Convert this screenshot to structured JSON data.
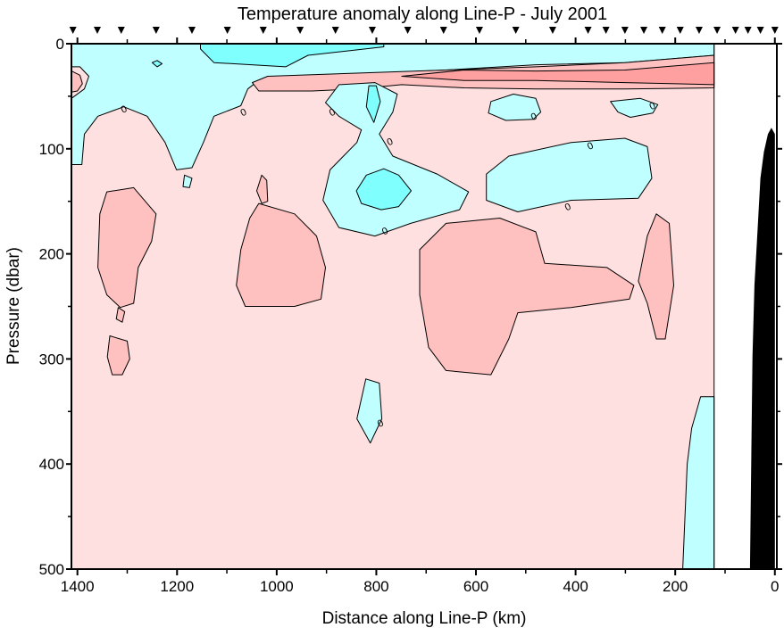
{
  "chart_data": {
    "type": "contour",
    "title": "Temperature anomaly along Line-P - July 2001",
    "xlabel": "Distance along Line-P (km)",
    "ylabel": "Pressure (dbar)",
    "xlim": [
      1412,
      -4
    ],
    "ylim": [
      0,
      500
    ],
    "x_reversed": true,
    "y_reversed": true,
    "x_ticks": [
      1400,
      1200,
      1000,
      800,
      600,
      400,
      200,
      0
    ],
    "x_tick_labels": [
      "1400",
      "1200",
      "1000",
      "800",
      "600",
      "400",
      "200",
      "0"
    ],
    "x_minor_ticks": [
      1300,
      1100,
      900,
      700,
      500,
      300,
      100
    ],
    "y_ticks": [
      0,
      100,
      200,
      300,
      400,
      500
    ],
    "y_tick_labels": [
      "0",
      "100",
      "200",
      "300",
      "400",
      "500"
    ],
    "y_minor_ticks": [
      50,
      150,
      250,
      350,
      450
    ],
    "grid": false,
    "data_extent_km": [
      1412,
      122
    ],
    "colors": {
      "background_positive": "#FFE0E0",
      "positive_1": "#FFC0C0",
      "positive_2": "#FFA0A0",
      "negative_1": "#C0FFFF",
      "negative_2": "#80FFFF",
      "bathymetry": "#000000",
      "no_data": "#FFFFFF"
    },
    "stations_km": [
      1409,
      1360,
      1312,
      1242,
      1170,
      1099,
      1027,
      953,
      882,
      808,
      737,
      665,
      593,
      520,
      446,
      375,
      339,
      301,
      263,
      226,
      190,
      152,
      116,
      79,
      54,
      29,
      0
    ],
    "contour_label": "0",
    "zero_label_positions": [
      [
        1307,
        62
      ],
      [
        1067,
        65
      ],
      [
        889,
        65
      ],
      [
        773,
        93
      ],
      [
        783,
        178
      ],
      [
        484,
        69
      ],
      [
        371,
        97
      ],
      [
        416,
        155
      ],
      [
        246,
        59
      ],
      [
        792,
        361
      ]
    ],
    "regions": [
      {
        "level": "negative_1",
        "points": [
          [
            1412,
            0
          ],
          [
            122,
            0
          ],
          [
            122,
            11
          ],
          [
            301,
            18
          ],
          [
            480,
            20
          ],
          [
            660,
            25
          ],
          [
            803,
            28
          ],
          [
            929,
            33
          ],
          [
            1036,
            35
          ],
          [
            1058,
            43
          ],
          [
            1072,
            59
          ],
          [
            1126,
            69
          ],
          [
            1147,
            94
          ],
          [
            1170,
            118
          ],
          [
            1201,
            120
          ],
          [
            1224,
            94
          ],
          [
            1260,
            69
          ],
          [
            1307,
            60
          ],
          [
            1359,
            69
          ],
          [
            1386,
            86
          ],
          [
            1391,
            115
          ],
          [
            1412,
            115
          ],
          [
            1412,
            52
          ],
          [
            1386,
            43
          ],
          [
            1377,
            31
          ],
          [
            1395,
            22
          ],
          [
            1412,
            22
          ]
        ]
      },
      {
        "level": "negative_2",
        "points": [
          [
            1153,
            0
          ],
          [
            785,
            0
          ],
          [
            785,
            3
          ],
          [
            937,
            11
          ],
          [
            982,
            22
          ],
          [
            1126,
            18
          ],
          [
            1153,
            5
          ]
        ]
      },
      {
        "level": "negative_2",
        "points": [
          [
            1250,
            18
          ],
          [
            1240,
            16
          ],
          [
            1230,
            19
          ],
          [
            1240,
            22
          ]
        ]
      },
      {
        "level": "positive_1",
        "points": [
          [
            1049,
            37
          ],
          [
            1018,
            31
          ],
          [
            839,
            28
          ],
          [
            660,
            25
          ],
          [
            480,
            22
          ],
          [
            301,
            18
          ],
          [
            122,
            11
          ],
          [
            122,
            42
          ],
          [
            301,
            43
          ],
          [
            480,
            43
          ],
          [
            624,
            42
          ],
          [
            749,
            39
          ],
          [
            839,
            43
          ],
          [
            929,
            45
          ],
          [
            1036,
            45
          ]
        ]
      },
      {
        "level": "positive_2",
        "points": [
          [
            749,
            31
          ],
          [
            624,
            25
          ],
          [
            480,
            26
          ],
          [
            301,
            25
          ],
          [
            122,
            18
          ],
          [
            122,
            39
          ],
          [
            301,
            37
          ],
          [
            480,
            35
          ],
          [
            624,
            35
          ]
        ]
      },
      {
        "level": "positive_1",
        "points": [
          [
            1412,
            26
          ],
          [
            1395,
            30
          ],
          [
            1390,
            38
          ],
          [
            1400,
            45
          ],
          [
            1412,
            46
          ]
        ]
      },
      {
        "level": "negative_1",
        "points": [
          [
            902,
            56
          ],
          [
            875,
            39
          ],
          [
            803,
            37
          ],
          [
            758,
            48
          ],
          [
            767,
            65
          ],
          [
            794,
            86
          ],
          [
            767,
            107
          ],
          [
            678,
            124
          ],
          [
            615,
            141
          ],
          [
            633,
            158
          ],
          [
            731,
            171
          ],
          [
            803,
            183
          ],
          [
            875,
            175
          ],
          [
            907,
            149
          ],
          [
            893,
            120
          ],
          [
            839,
            94
          ],
          [
            830,
            82
          ],
          [
            875,
            69
          ]
        ]
      },
      {
        "level": "negative_2",
        "points": [
          [
            840,
            140
          ],
          [
            820,
            125
          ],
          [
            785,
            119
          ],
          [
            755,
            125
          ],
          [
            730,
            140
          ],
          [
            755,
            155
          ],
          [
            790,
            158
          ],
          [
            830,
            152
          ]
        ]
      },
      {
        "level": "negative_2",
        "points": [
          [
            815,
            40
          ],
          [
            800,
            40
          ],
          [
            792,
            55
          ],
          [
            805,
            75
          ],
          [
            820,
            60
          ]
        ]
      },
      {
        "level": "negative_1",
        "points": [
          [
            579,
            124
          ],
          [
            534,
            107
          ],
          [
            409,
            94
          ],
          [
            301,
            90
          ],
          [
            256,
            98
          ],
          [
            247,
            128
          ],
          [
            274,
            147
          ],
          [
            409,
            149
          ],
          [
            516,
            160
          ],
          [
            579,
            149
          ]
        ]
      },
      {
        "level": "negative_1",
        "points": [
          [
            570,
            55
          ],
          [
            525,
            48
          ],
          [
            480,
            52
          ],
          [
            470,
            65
          ],
          [
            485,
            72
          ],
          [
            540,
            73
          ],
          [
            575,
            66
          ]
        ]
      },
      {
        "level": "negative_1",
        "points": [
          [
            330,
            55
          ],
          [
            270,
            52
          ],
          [
            235,
            58
          ],
          [
            245,
            66
          ],
          [
            290,
            70
          ],
          [
            315,
            65
          ]
        ]
      },
      {
        "level": "negative_1",
        "points": [
          [
            122,
            336
          ],
          [
            149,
            336
          ],
          [
            167,
            366
          ],
          [
            176,
            400
          ],
          [
            185,
            500
          ],
          [
            122,
            500
          ]
        ]
      },
      {
        "level": "negative_1",
        "points": [
          [
            821,
            319
          ],
          [
            794,
            323
          ],
          [
            789,
            357
          ],
          [
            812,
            380
          ],
          [
            839,
            357
          ]
        ]
      },
      {
        "level": "negative_1",
        "points": [
          [
            1185,
            125
          ],
          [
            1170,
            128
          ],
          [
            1175,
            137
          ],
          [
            1188,
            136
          ]
        ]
      },
      {
        "level": "positive_1",
        "points": [
          [
            1341,
            141
          ],
          [
            1287,
            137
          ],
          [
            1242,
            162
          ],
          [
            1251,
            188
          ],
          [
            1278,
            213
          ],
          [
            1287,
            247
          ],
          [
            1314,
            251
          ],
          [
            1341,
            239
          ],
          [
            1359,
            213
          ],
          [
            1355,
            162
          ]
        ]
      },
      {
        "level": "positive_1",
        "points": [
          [
            1318,
            251
          ],
          [
            1305,
            255
          ],
          [
            1310,
            265
          ],
          [
            1322,
            262
          ]
        ]
      },
      {
        "level": "positive_1",
        "points": [
          [
            1335,
            278
          ],
          [
            1300,
            283
          ],
          [
            1295,
            300
          ],
          [
            1310,
            315
          ],
          [
            1330,
            315
          ],
          [
            1340,
            298
          ]
        ]
      },
      {
        "level": "positive_1",
        "points": [
          [
            1036,
            152
          ],
          [
            964,
            162
          ],
          [
            920,
            183
          ],
          [
            902,
            213
          ],
          [
            911,
            243
          ],
          [
            964,
            250
          ],
          [
            1063,
            250
          ],
          [
            1081,
            230
          ],
          [
            1072,
            196
          ],
          [
            1054,
            166
          ]
        ]
      },
      {
        "level": "positive_1",
        "points": [
          [
            1030,
            125
          ],
          [
            1020,
            130
          ],
          [
            1018,
            150
          ],
          [
            1030,
            152
          ],
          [
            1040,
            140
          ]
        ]
      },
      {
        "level": "positive_1",
        "points": [
          [
            713,
            196
          ],
          [
            660,
            171
          ],
          [
            552,
            166
          ],
          [
            480,
            179
          ],
          [
            462,
            209
          ],
          [
            337,
            213
          ],
          [
            283,
            230
          ],
          [
            292,
            243
          ],
          [
            409,
            251
          ],
          [
            516,
            256
          ],
          [
            534,
            281
          ],
          [
            570,
            315
          ],
          [
            660,
            311
          ],
          [
            695,
            289
          ],
          [
            713,
            239
          ]
        ]
      },
      {
        "level": "positive_1",
        "points": [
          [
            238,
            162
          ],
          [
            212,
            171
          ],
          [
            203,
            230
          ],
          [
            220,
            281
          ],
          [
            238,
            281
          ],
          [
            256,
            247
          ],
          [
            274,
            226
          ],
          [
            256,
            183
          ]
        ]
      }
    ],
    "bathymetry": [
      [
        50,
        500
      ],
      [
        45,
        298
      ],
      [
        41,
        230
      ],
      [
        36,
        188
      ],
      [
        29,
        128
      ],
      [
        22,
        103
      ],
      [
        14,
        86
      ],
      [
        7,
        80
      ],
      [
        0,
        86
      ],
      [
        0,
        500
      ]
    ]
  }
}
